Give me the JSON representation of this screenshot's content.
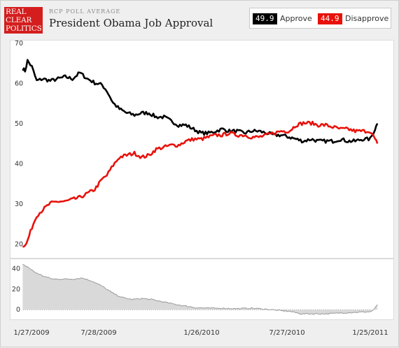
{
  "header": {
    "logo_lines": [
      "REAL",
      "CLEAR",
      "POLITICS"
    ],
    "kicker": "RCP POLL AVERAGE",
    "title": "President Obama Job Approval"
  },
  "legend": {
    "approve": {
      "value": "49.9",
      "label": "Approve",
      "color": "#000000"
    },
    "disapprove": {
      "value": "44.9",
      "label": "Disapprove",
      "color": "#e8120b"
    }
  },
  "chart_data": {
    "type": "line",
    "title": "President Obama Job Approval",
    "x_tick_labels": [
      "1/27/2009",
      "7/28/2009",
      "1/26/2010",
      "7/27/2010",
      "1/25/2011"
    ],
    "x_range": [
      "2009-01-20",
      "2011-02-01"
    ],
    "main_panel": {
      "ylim": [
        17,
        70
      ],
      "y_ticks": [
        20,
        30,
        40,
        50,
        60,
        70
      ],
      "grid": false,
      "series": [
        {
          "name": "Approve",
          "color": "#000000",
          "points": [
            [
              "2009-01-22",
              63.5
            ],
            [
              "2009-01-27",
              63
            ],
            [
              "2009-02-01",
              65.5
            ],
            [
              "2009-02-10",
              64
            ],
            [
              "2009-02-20",
              60.5
            ],
            [
              "2009-03-05",
              61
            ],
            [
              "2009-03-20",
              60.5
            ],
            [
              "2009-04-05",
              61
            ],
            [
              "2009-04-20",
              61.5
            ],
            [
              "2009-05-05",
              61
            ],
            [
              "2009-05-20",
              62.5
            ],
            [
              "2009-06-05",
              61
            ],
            [
              "2009-06-20",
              60
            ],
            [
              "2009-07-05",
              59.5
            ],
            [
              "2009-07-15",
              58
            ],
            [
              "2009-07-28",
              55
            ],
            [
              "2009-08-10",
              53.5
            ],
            [
              "2009-08-25",
              52.5
            ],
            [
              "2009-09-10",
              52
            ],
            [
              "2009-09-25",
              52.5
            ],
            [
              "2009-10-10",
              52.5
            ],
            [
              "2009-10-25",
              51.5
            ],
            [
              "2009-11-10",
              51.5
            ],
            [
              "2009-11-25",
              50.5
            ],
            [
              "2009-12-10",
              49.5
            ],
            [
              "2009-12-25",
              49.5
            ],
            [
              "2010-01-10",
              48.5
            ],
            [
              "2010-01-26",
              47.5
            ],
            [
              "2010-02-10",
              47.5
            ],
            [
              "2010-02-25",
              48
            ],
            [
              "2010-03-10",
              48.5
            ],
            [
              "2010-03-25",
              48
            ],
            [
              "2010-04-10",
              48
            ],
            [
              "2010-04-25",
              47.5
            ],
            [
              "2010-05-10",
              48
            ],
            [
              "2010-05-25",
              48
            ],
            [
              "2010-06-10",
              47.5
            ],
            [
              "2010-06-25",
              47
            ],
            [
              "2010-07-10",
              47
            ],
            [
              "2010-07-27",
              46.5
            ],
            [
              "2010-08-10",
              46
            ],
            [
              "2010-08-25",
              45.5
            ],
            [
              "2010-09-10",
              46
            ],
            [
              "2010-09-25",
              45.5
            ],
            [
              "2010-10-10",
              45.5
            ],
            [
              "2010-10-25",
              45.5
            ],
            [
              "2010-11-10",
              46
            ],
            [
              "2010-11-25",
              45.5
            ],
            [
              "2010-12-10",
              45.5
            ],
            [
              "2010-12-25",
              46
            ],
            [
              "2011-01-10",
              46
            ],
            [
              "2011-01-20",
              48.5
            ],
            [
              "2011-01-25",
              49.9
            ]
          ]
        },
        {
          "name": "Disapprove",
          "color": "#e8120b",
          "points": [
            [
              "2009-01-22",
              19.5
            ],
            [
              "2009-01-30",
              20
            ],
            [
              "2009-02-10",
              24
            ],
            [
              "2009-02-20",
              27
            ],
            [
              "2009-03-05",
              28.5
            ],
            [
              "2009-03-20",
              30
            ],
            [
              "2009-04-05",
              30.5
            ],
            [
              "2009-04-20",
              30.5
            ],
            [
              "2009-05-05",
              31
            ],
            [
              "2009-05-20",
              31.5
            ],
            [
              "2009-06-05",
              32.5
            ],
            [
              "2009-06-20",
              33.5
            ],
            [
              "2009-07-05",
              36
            ],
            [
              "2009-07-15",
              37
            ],
            [
              "2009-07-28",
              39.5
            ],
            [
              "2009-08-10",
              41.5
            ],
            [
              "2009-08-25",
              42
            ],
            [
              "2009-09-10",
              42.5
            ],
            [
              "2009-09-25",
              41.5
            ],
            [
              "2009-10-10",
              42
            ],
            [
              "2009-10-25",
              43.5
            ],
            [
              "2009-11-10",
              44
            ],
            [
              "2009-11-25",
              44.5
            ],
            [
              "2009-12-10",
              44.5
            ],
            [
              "2009-12-25",
              45.5
            ],
            [
              "2010-01-10",
              46
            ],
            [
              "2010-01-26",
              46
            ],
            [
              "2010-02-10",
              46.5
            ],
            [
              "2010-02-25",
              47
            ],
            [
              "2010-03-10",
              47
            ],
            [
              "2010-03-25",
              47.5
            ],
            [
              "2010-04-10",
              47
            ],
            [
              "2010-04-25",
              47
            ],
            [
              "2010-05-10",
              46.5
            ],
            [
              "2010-05-25",
              46.5
            ],
            [
              "2010-06-10",
              47
            ],
            [
              "2010-06-25",
              47.5
            ],
            [
              "2010-07-10",
              48
            ],
            [
              "2010-07-27",
              48
            ],
            [
              "2010-08-10",
              49.5
            ],
            [
              "2010-08-25",
              50
            ],
            [
              "2010-09-10",
              50
            ],
            [
              "2010-09-25",
              49.5
            ],
            [
              "2010-10-10",
              49.5
            ],
            [
              "2010-10-25",
              49
            ],
            [
              "2010-11-10",
              48.5
            ],
            [
              "2010-11-25",
              48.5
            ],
            [
              "2010-12-10",
              48
            ],
            [
              "2010-12-25",
              48
            ],
            [
              "2011-01-10",
              48
            ],
            [
              "2011-01-20",
              46
            ],
            [
              "2011-01-25",
              44.9
            ]
          ]
        }
      ]
    },
    "spread_panel": {
      "ylim": [
        -6,
        48
      ],
      "y_ticks": [
        0,
        20,
        40
      ],
      "series": [
        {
          "name": "Spread",
          "color": "#9a9a9a",
          "points": [
            [
              "2009-01-22",
              44
            ],
            [
              "2009-02-01",
              42
            ],
            [
              "2009-02-15",
              37
            ],
            [
              "2009-03-05",
              33
            ],
            [
              "2009-03-25",
              30
            ],
            [
              "2009-04-15",
              30
            ],
            [
              "2009-05-05",
              30
            ],
            [
              "2009-05-25",
              31
            ],
            [
              "2009-06-15",
              28
            ],
            [
              "2009-07-05",
              23
            ],
            [
              "2009-07-28",
              16
            ],
            [
              "2009-08-15",
              12
            ],
            [
              "2009-09-05",
              10
            ],
            [
              "2009-09-25",
              11
            ],
            [
              "2009-10-15",
              10
            ],
            [
              "2009-11-05",
              8
            ],
            [
              "2009-11-25",
              6
            ],
            [
              "2009-12-20",
              4
            ],
            [
              "2010-01-15",
              2
            ],
            [
              "2010-02-10",
              1.5
            ],
            [
              "2010-03-10",
              1.5
            ],
            [
              "2010-04-10",
              1
            ],
            [
              "2010-05-10",
              1.5
            ],
            [
              "2010-06-10",
              0.5
            ],
            [
              "2010-07-10",
              -1
            ],
            [
              "2010-07-27",
              -1.5
            ],
            [
              "2010-08-20",
              -4
            ],
            [
              "2010-09-15",
              -4
            ],
            [
              "2010-10-15",
              -4
            ],
            [
              "2010-11-15",
              -3
            ],
            [
              "2010-12-15",
              -2.5
            ],
            [
              "2011-01-10",
              -2
            ],
            [
              "2011-01-18",
              0
            ],
            [
              "2011-01-25",
              5
            ]
          ]
        }
      ]
    }
  }
}
